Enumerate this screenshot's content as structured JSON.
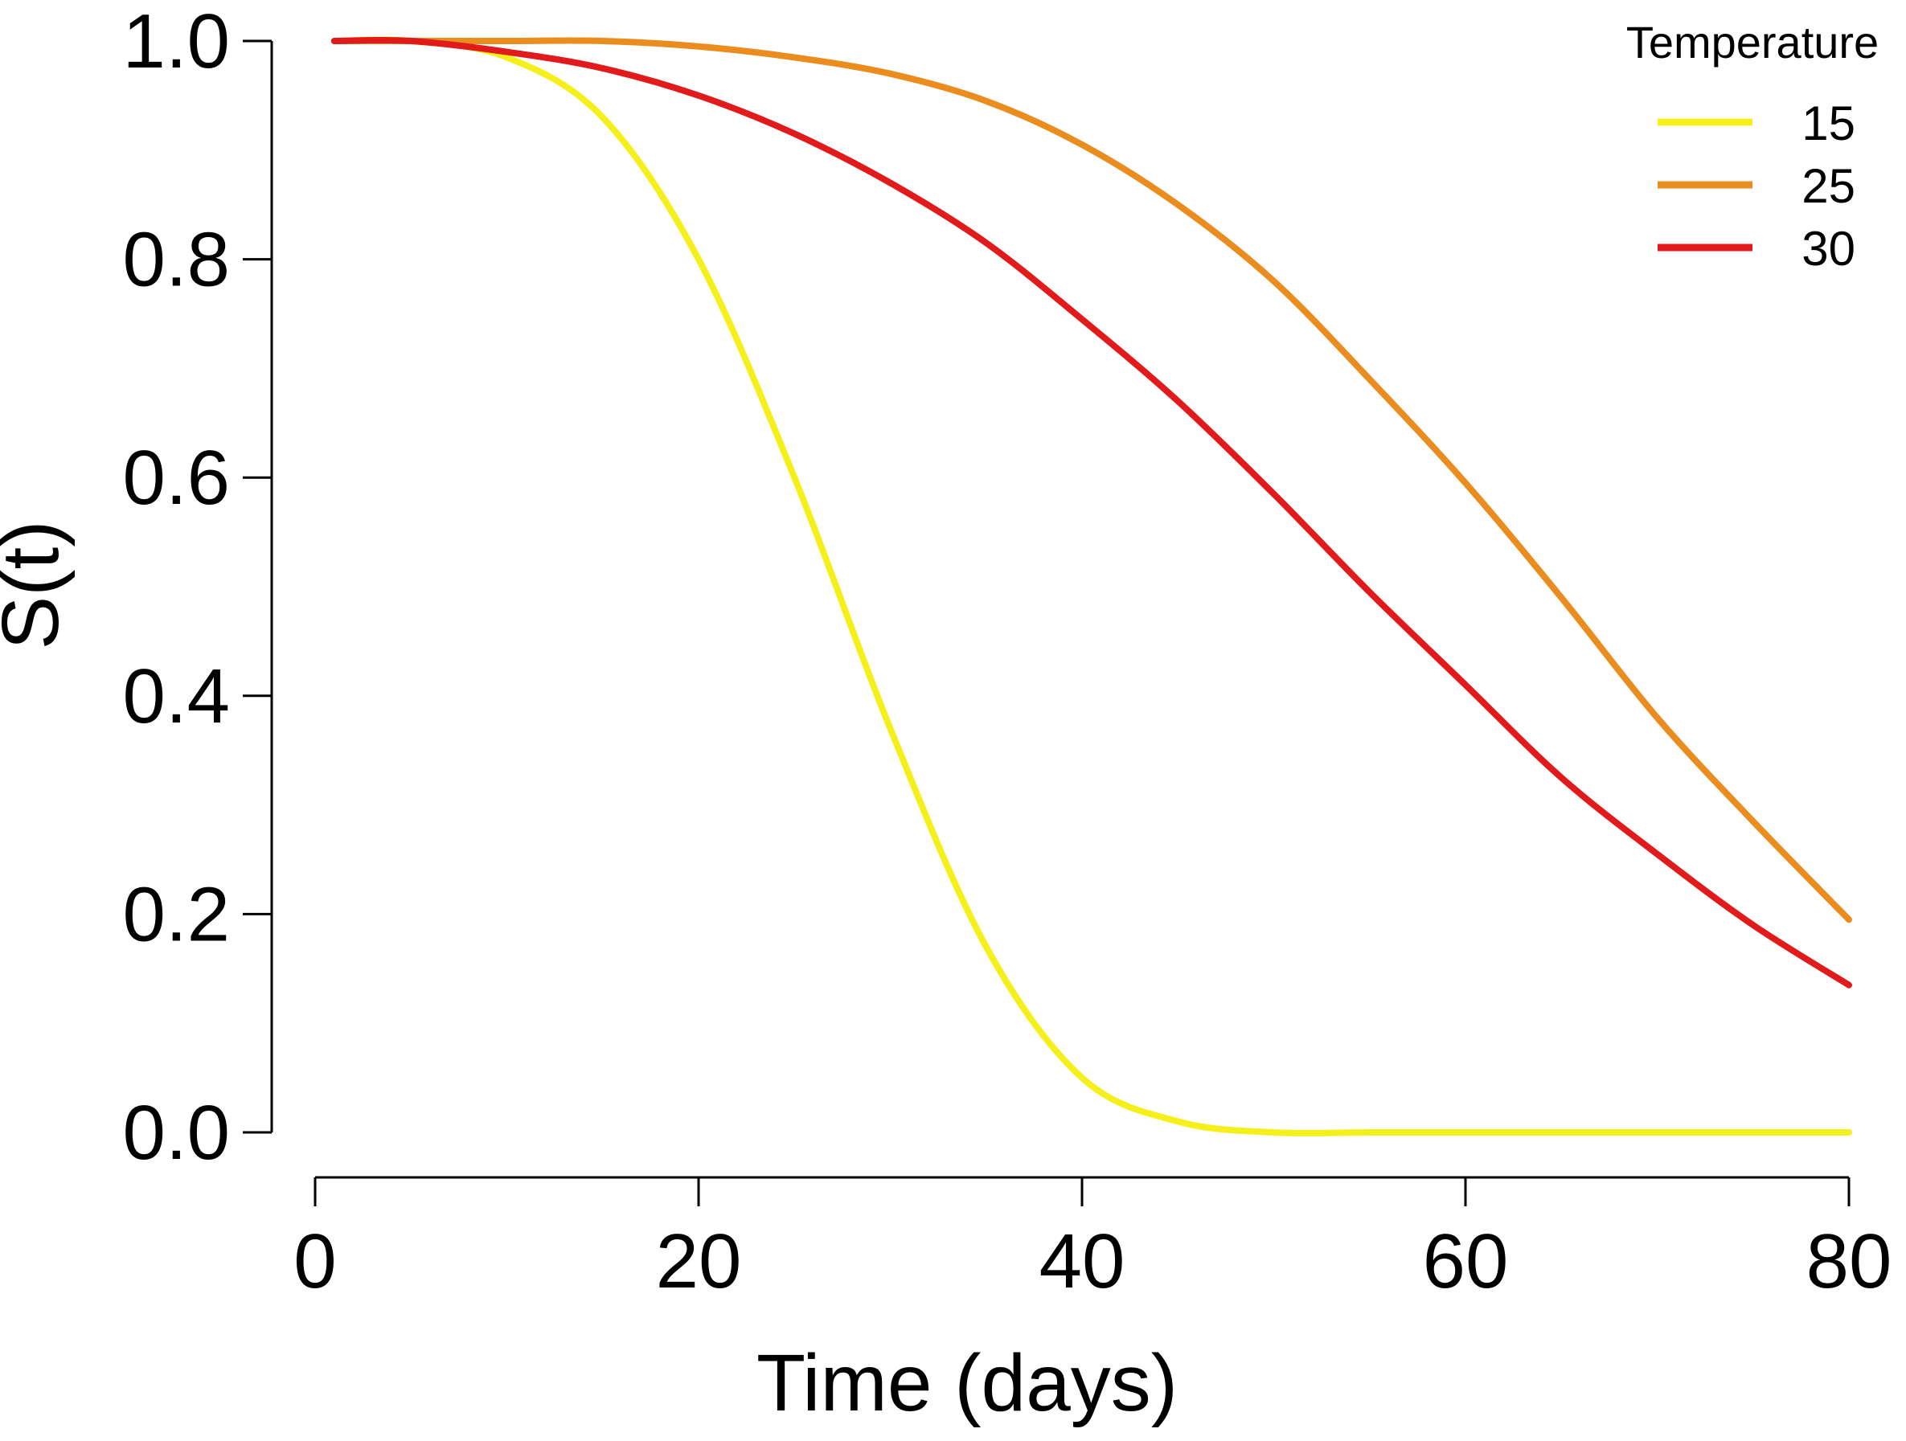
{
  "chart_data": {
    "type": "line",
    "title": "",
    "xlabel": "Time (days)",
    "ylabel": "S(t)",
    "xlim": [
      0,
      80
    ],
    "ylim": [
      0,
      1
    ],
    "x_ticks": [
      0,
      20,
      40,
      60,
      80
    ],
    "x_tick_labels": [
      "0",
      "20",
      "40",
      "60",
      "80"
    ],
    "y_ticks": [
      0,
      0.2,
      0.4,
      0.6,
      0.8,
      1.0
    ],
    "y_tick_labels": [
      "0.0",
      "0.2",
      "0.4",
      "0.6",
      "0.8",
      "1.0"
    ],
    "grid": false,
    "legend": {
      "title": "Temperature",
      "position": "top-right"
    },
    "x": [
      1,
      5,
      10,
      15,
      20,
      25,
      30,
      35,
      40,
      45,
      50,
      55,
      60,
      65,
      70,
      75,
      80
    ],
    "series": [
      {
        "name": "15",
        "color": "#f5f01c",
        "values": [
          1.0,
          1.0,
          0.985,
          0.93,
          0.8,
          0.6,
          0.37,
          0.17,
          0.05,
          0.01,
          0.0,
          0.0,
          0.0,
          0.0,
          0.0,
          0.0,
          0.0
        ]
      },
      {
        "name": "25",
        "color": "#eb8c1e",
        "values": [
          1.0,
          1.0,
          1.0,
          1.0,
          0.995,
          0.985,
          0.97,
          0.945,
          0.905,
          0.85,
          0.78,
          0.69,
          0.595,
          0.49,
          0.38,
          0.285,
          0.195
        ]
      },
      {
        "name": "30",
        "color": "#e11b1b",
        "values": [
          1.0,
          1.0,
          0.99,
          0.975,
          0.95,
          0.915,
          0.87,
          0.815,
          0.745,
          0.67,
          0.585,
          0.495,
          0.41,
          0.325,
          0.255,
          0.19,
          0.135
        ]
      }
    ]
  }
}
